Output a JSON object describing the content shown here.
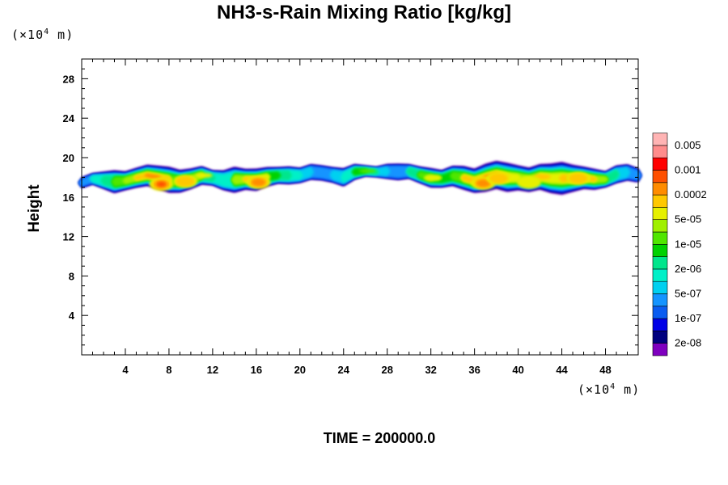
{
  "chart_data": {
    "type": "heatmap",
    "title": "NH3-s-Rain Mixing Ratio [kg/kg]",
    "ylabel": "Height",
    "x_unit": {
      "prefix": "(×10",
      "exp": "4",
      "suffix": " m)"
    },
    "y_unit": {
      "prefix": "(×10",
      "exp": "4",
      "suffix": " m)"
    },
    "xlim": [
      0,
      51
    ],
    "ylim": [
      0,
      30
    ],
    "x_ticks": [
      4,
      8,
      12,
      16,
      20,
      24,
      28,
      32,
      36,
      40,
      44,
      48
    ],
    "y_ticks": [
      4,
      8,
      12,
      16,
      20,
      24,
      28
    ],
    "footer": "TIME = 200000.0",
    "colorbar": {
      "colors": [
        "#7f00bf",
        "#00007f",
        "#0000e6",
        "#0a5cf0",
        "#1494ff",
        "#00d0f0",
        "#00f0c8",
        "#00e68c",
        "#00d200",
        "#50e600",
        "#a0f000",
        "#e6f000",
        "#ffc800",
        "#ff8c00",
        "#ff5000",
        "#ff0000",
        "#ff8c8c",
        "#ffb4b4"
      ],
      "labels": [
        "2e-08",
        "1e-07",
        "5e-07",
        "2e-06",
        "1e-05",
        "5e-05",
        "0.0002",
        "0.001",
        "0.005"
      ]
    },
    "cloud_band": {
      "y_bottom": [
        16.9,
        17.3,
        16.8,
        16.4,
        16.8,
        17.1,
        17.3,
        17.0,
        16.6,
        16.5,
        16.9,
        17.4,
        17.2,
        16.6,
        16.5,
        16.9,
        16.8,
        17.2,
        17.4,
        17.3,
        17.4,
        17.7,
        17.6,
        17.4,
        17.0,
        17.8,
        18.2,
        18.1,
        17.8,
        17.6,
        17.9,
        17.5,
        17.1,
        17.0,
        17.2,
        16.9,
        16.6,
        16.7,
        17.0,
        16.7,
        16.8,
        16.6,
        16.9,
        16.5,
        16.4,
        16.7,
        17.0,
        16.9,
        17.1,
        17.4,
        17.6,
        17.4
      ],
      "y_top": [
        18.3,
        18.7,
        18.9,
        19.0,
        18.8,
        19.1,
        19.4,
        19.3,
        19.2,
        19.0,
        19.1,
        19.3,
        19.0,
        19.1,
        19.3,
        19.0,
        19.0,
        19.2,
        19.3,
        19.4,
        19.3,
        19.7,
        19.6,
        19.4,
        19.3,
        19.6,
        19.4,
        19.3,
        19.7,
        19.8,
        19.6,
        19.3,
        19.1,
        19.0,
        19.4,
        19.3,
        19.0,
        19.5,
        19.8,
        19.6,
        19.4,
        19.2,
        19.5,
        19.6,
        19.7,
        19.4,
        19.2,
        19.0,
        18.8,
        19.5,
        19.7,
        19.3
      ],
      "intensity": [
        0.35,
        0.45,
        0.5,
        0.65,
        0.75,
        0.85,
        0.95,
        1.0,
        0.9,
        0.7,
        0.75,
        0.8,
        0.55,
        0.45,
        0.75,
        0.85,
        1.0,
        0.8,
        0.6,
        0.55,
        0.45,
        0.4,
        0.35,
        0.4,
        0.45,
        0.6,
        0.65,
        0.55,
        0.4,
        0.35,
        0.55,
        0.7,
        0.8,
        0.6,
        0.7,
        0.85,
        0.9,
        0.95,
        1.0,
        0.9,
        0.8,
        0.75,
        0.85,
        0.8,
        0.9,
        0.95,
        0.9,
        0.85,
        0.75,
        0.55,
        0.4,
        0.3
      ],
      "cores": [
        {
          "x": 7.3,
          "y": 17.3,
          "level": 0.97
        },
        {
          "x": 9.5,
          "y": 17.6,
          "level": 0.85
        },
        {
          "x": 16.2,
          "y": 17.5,
          "level": 0.9
        },
        {
          "x": 36.8,
          "y": 17.4,
          "level": 0.88
        },
        {
          "x": 38.2,
          "y": 17.9,
          "level": 0.85
        },
        {
          "x": 45.5,
          "y": 17.9,
          "level": 0.85
        },
        {
          "x": 41.0,
          "y": 17.5,
          "level": 0.75
        }
      ]
    }
  }
}
